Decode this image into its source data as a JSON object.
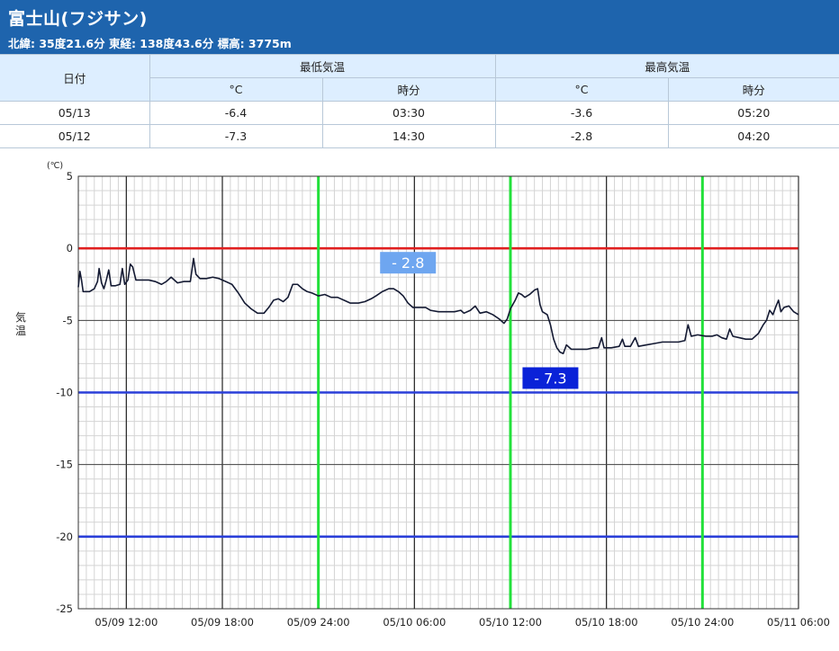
{
  "station": {
    "name": "富士山(フジサン)",
    "info": "北緯: 35度21.6分 東経: 138度43.6分 標高: 3775m"
  },
  "table": {
    "date_header": "日付",
    "min_header": "最低気温",
    "max_header": "最高気温",
    "unit_header": "°C",
    "time_header": "時分",
    "rows": [
      {
        "date": "05/13",
        "min_value": "-6.4",
        "min_time": "03:30",
        "max_value": "-3.6",
        "max_time": "05:20"
      },
      {
        "date": "05/12",
        "min_value": "-7.3",
        "min_time": "14:30",
        "max_value": "-2.8",
        "max_time": "04:20"
      }
    ]
  },
  "chart_data": {
    "type": "line",
    "unit_label": "(℃)",
    "ylabel": "気温",
    "ylim": [
      -25,
      5
    ],
    "yticks": [
      "5",
      "0",
      "-5",
      "-10",
      "-15",
      "-20",
      "-25"
    ],
    "xlim_hours": [
      0,
      45
    ],
    "xtick_labels": [
      "05/09 12:00",
      "05/09 18:00",
      "05/09 24:00",
      "05/10 06:00",
      "05/10 12:00",
      "05/10 18:00",
      "05/10 24:00",
      "05/11 06:00"
    ],
    "xtick_hours": [
      3,
      9,
      15,
      21,
      27,
      33,
      39,
      45
    ],
    "grid": true,
    "reference_lines": [
      {
        "value": 0,
        "color": "#e02020"
      },
      {
        "value": -10,
        "color": "#2a3fd8"
      },
      {
        "value": -20,
        "color": "#2a3fd8"
      }
    ],
    "day_markers_hours": [
      15,
      27,
      39
    ],
    "day_marker_color": "#22e03a",
    "annotations": [
      {
        "text": "- 2.8",
        "x": 20.6,
        "y": -1.0,
        "bg": "#6ea6f0"
      },
      {
        "text": "- 7.3",
        "x": 29.5,
        "y": -9.0,
        "bg": "#0a22d8"
      }
    ],
    "series": [
      {
        "color": "#141a33",
        "points": [
          [
            0.0,
            -2.7
          ],
          [
            0.1,
            -1.6
          ],
          [
            0.2,
            -2.2
          ],
          [
            0.3,
            -3.0
          ],
          [
            0.7,
            -3.0
          ],
          [
            1.0,
            -2.8
          ],
          [
            1.2,
            -2.3
          ],
          [
            1.3,
            -1.4
          ],
          [
            1.45,
            -2.4
          ],
          [
            1.6,
            -2.8
          ],
          [
            1.75,
            -2.2
          ],
          [
            1.9,
            -1.5
          ],
          [
            2.05,
            -2.6
          ],
          [
            2.3,
            -2.6
          ],
          [
            2.6,
            -2.5
          ],
          [
            2.75,
            -1.4
          ],
          [
            2.9,
            -2.5
          ],
          [
            3.1,
            -2.2
          ],
          [
            3.25,
            -1.1
          ],
          [
            3.4,
            -1.3
          ],
          [
            3.6,
            -2.2
          ],
          [
            4.0,
            -2.2
          ],
          [
            4.4,
            -2.2
          ],
          [
            4.8,
            -2.3
          ],
          [
            5.2,
            -2.5
          ],
          [
            5.5,
            -2.3
          ],
          [
            5.8,
            -2.0
          ],
          [
            6.2,
            -2.4
          ],
          [
            6.6,
            -2.3
          ],
          [
            7.0,
            -2.3
          ],
          [
            7.2,
            -0.7
          ],
          [
            7.35,
            -1.8
          ],
          [
            7.6,
            -2.1
          ],
          [
            8.0,
            -2.1
          ],
          [
            8.4,
            -2.0
          ],
          [
            8.8,
            -2.1
          ],
          [
            9.2,
            -2.3
          ],
          [
            9.6,
            -2.5
          ],
          [
            10.0,
            -3.1
          ],
          [
            10.4,
            -3.8
          ],
          [
            10.8,
            -4.2
          ],
          [
            11.2,
            -4.5
          ],
          [
            11.6,
            -4.5
          ],
          [
            11.9,
            -4.1
          ],
          [
            12.2,
            -3.6
          ],
          [
            12.5,
            -3.5
          ],
          [
            12.8,
            -3.7
          ],
          [
            13.1,
            -3.4
          ],
          [
            13.4,
            -2.5
          ],
          [
            13.7,
            -2.5
          ],
          [
            14.0,
            -2.8
          ],
          [
            14.3,
            -3.0
          ],
          [
            14.6,
            -3.1
          ],
          [
            15.0,
            -3.3
          ],
          [
            15.4,
            -3.2
          ],
          [
            15.8,
            -3.4
          ],
          [
            16.2,
            -3.4
          ],
          [
            16.6,
            -3.6
          ],
          [
            17.0,
            -3.8
          ],
          [
            17.5,
            -3.8
          ],
          [
            17.9,
            -3.7
          ],
          [
            18.3,
            -3.5
          ],
          [
            18.6,
            -3.3
          ],
          [
            19.0,
            -3.0
          ],
          [
            19.4,
            -2.8
          ],
          [
            19.7,
            -2.8
          ],
          [
            20.0,
            -3.0
          ],
          [
            20.3,
            -3.3
          ],
          [
            20.6,
            -3.8
          ],
          [
            20.9,
            -4.1
          ],
          [
            21.3,
            -4.1
          ],
          [
            21.7,
            -4.1
          ],
          [
            22.0,
            -4.3
          ],
          [
            22.5,
            -4.4
          ],
          [
            23.0,
            -4.4
          ],
          [
            23.5,
            -4.4
          ],
          [
            23.9,
            -4.3
          ],
          [
            24.1,
            -4.5
          ],
          [
            24.5,
            -4.3
          ],
          [
            24.8,
            -4.0
          ],
          [
            25.1,
            -4.5
          ],
          [
            25.5,
            -4.4
          ],
          [
            25.9,
            -4.6
          ],
          [
            26.3,
            -4.9
          ],
          [
            26.6,
            -5.2
          ],
          [
            26.8,
            -4.9
          ],
          [
            27.0,
            -4.2
          ],
          [
            27.3,
            -3.6
          ],
          [
            27.5,
            -3.1
          ],
          [
            27.7,
            -3.2
          ],
          [
            27.9,
            -3.4
          ],
          [
            28.2,
            -3.2
          ],
          [
            28.5,
            -2.9
          ],
          [
            28.7,
            -2.8
          ],
          [
            28.85,
            -3.9
          ],
          [
            29.0,
            -4.4
          ],
          [
            29.3,
            -4.6
          ],
          [
            29.5,
            -5.3
          ],
          [
            29.7,
            -6.3
          ],
          [
            29.9,
            -6.9
          ],
          [
            30.1,
            -7.2
          ],
          [
            30.3,
            -7.3
          ],
          [
            30.5,
            -6.7
          ],
          [
            30.8,
            -7.0
          ],
          [
            31.3,
            -7.0
          ],
          [
            31.8,
            -7.0
          ],
          [
            32.2,
            -6.9
          ],
          [
            32.5,
            -6.9
          ],
          [
            32.7,
            -6.2
          ],
          [
            32.85,
            -6.9
          ],
          [
            33.3,
            -6.9
          ],
          [
            33.8,
            -6.8
          ],
          [
            34.0,
            -6.3
          ],
          [
            34.15,
            -6.8
          ],
          [
            34.5,
            -6.8
          ],
          [
            34.8,
            -6.2
          ],
          [
            35.0,
            -6.8
          ],
          [
            35.5,
            -6.7
          ],
          [
            36.0,
            -6.6
          ],
          [
            36.5,
            -6.5
          ],
          [
            37.0,
            -6.5
          ],
          [
            37.5,
            -6.5
          ],
          [
            37.9,
            -6.4
          ],
          [
            38.1,
            -5.3
          ],
          [
            38.3,
            -6.1
          ],
          [
            38.7,
            -6.0
          ],
          [
            39.2,
            -6.1
          ],
          [
            39.6,
            -6.1
          ],
          [
            39.9,
            -6.0
          ],
          [
            40.2,
            -6.2
          ],
          [
            40.5,
            -6.3
          ],
          [
            40.7,
            -5.6
          ],
          [
            40.9,
            -6.1
          ],
          [
            41.3,
            -6.2
          ],
          [
            41.7,
            -6.3
          ],
          [
            42.1,
            -6.3
          ],
          [
            42.5,
            -5.9
          ],
          [
            42.8,
            -5.3
          ],
          [
            43.0,
            -5.0
          ],
          [
            43.2,
            -4.3
          ],
          [
            43.4,
            -4.6
          ],
          [
            43.6,
            -4.0
          ],
          [
            43.75,
            -3.6
          ],
          [
            43.9,
            -4.4
          ],
          [
            44.1,
            -4.1
          ],
          [
            44.4,
            -4.0
          ],
          [
            44.7,
            -4.4
          ],
          [
            45.0,
            -4.6
          ]
        ]
      }
    ]
  }
}
